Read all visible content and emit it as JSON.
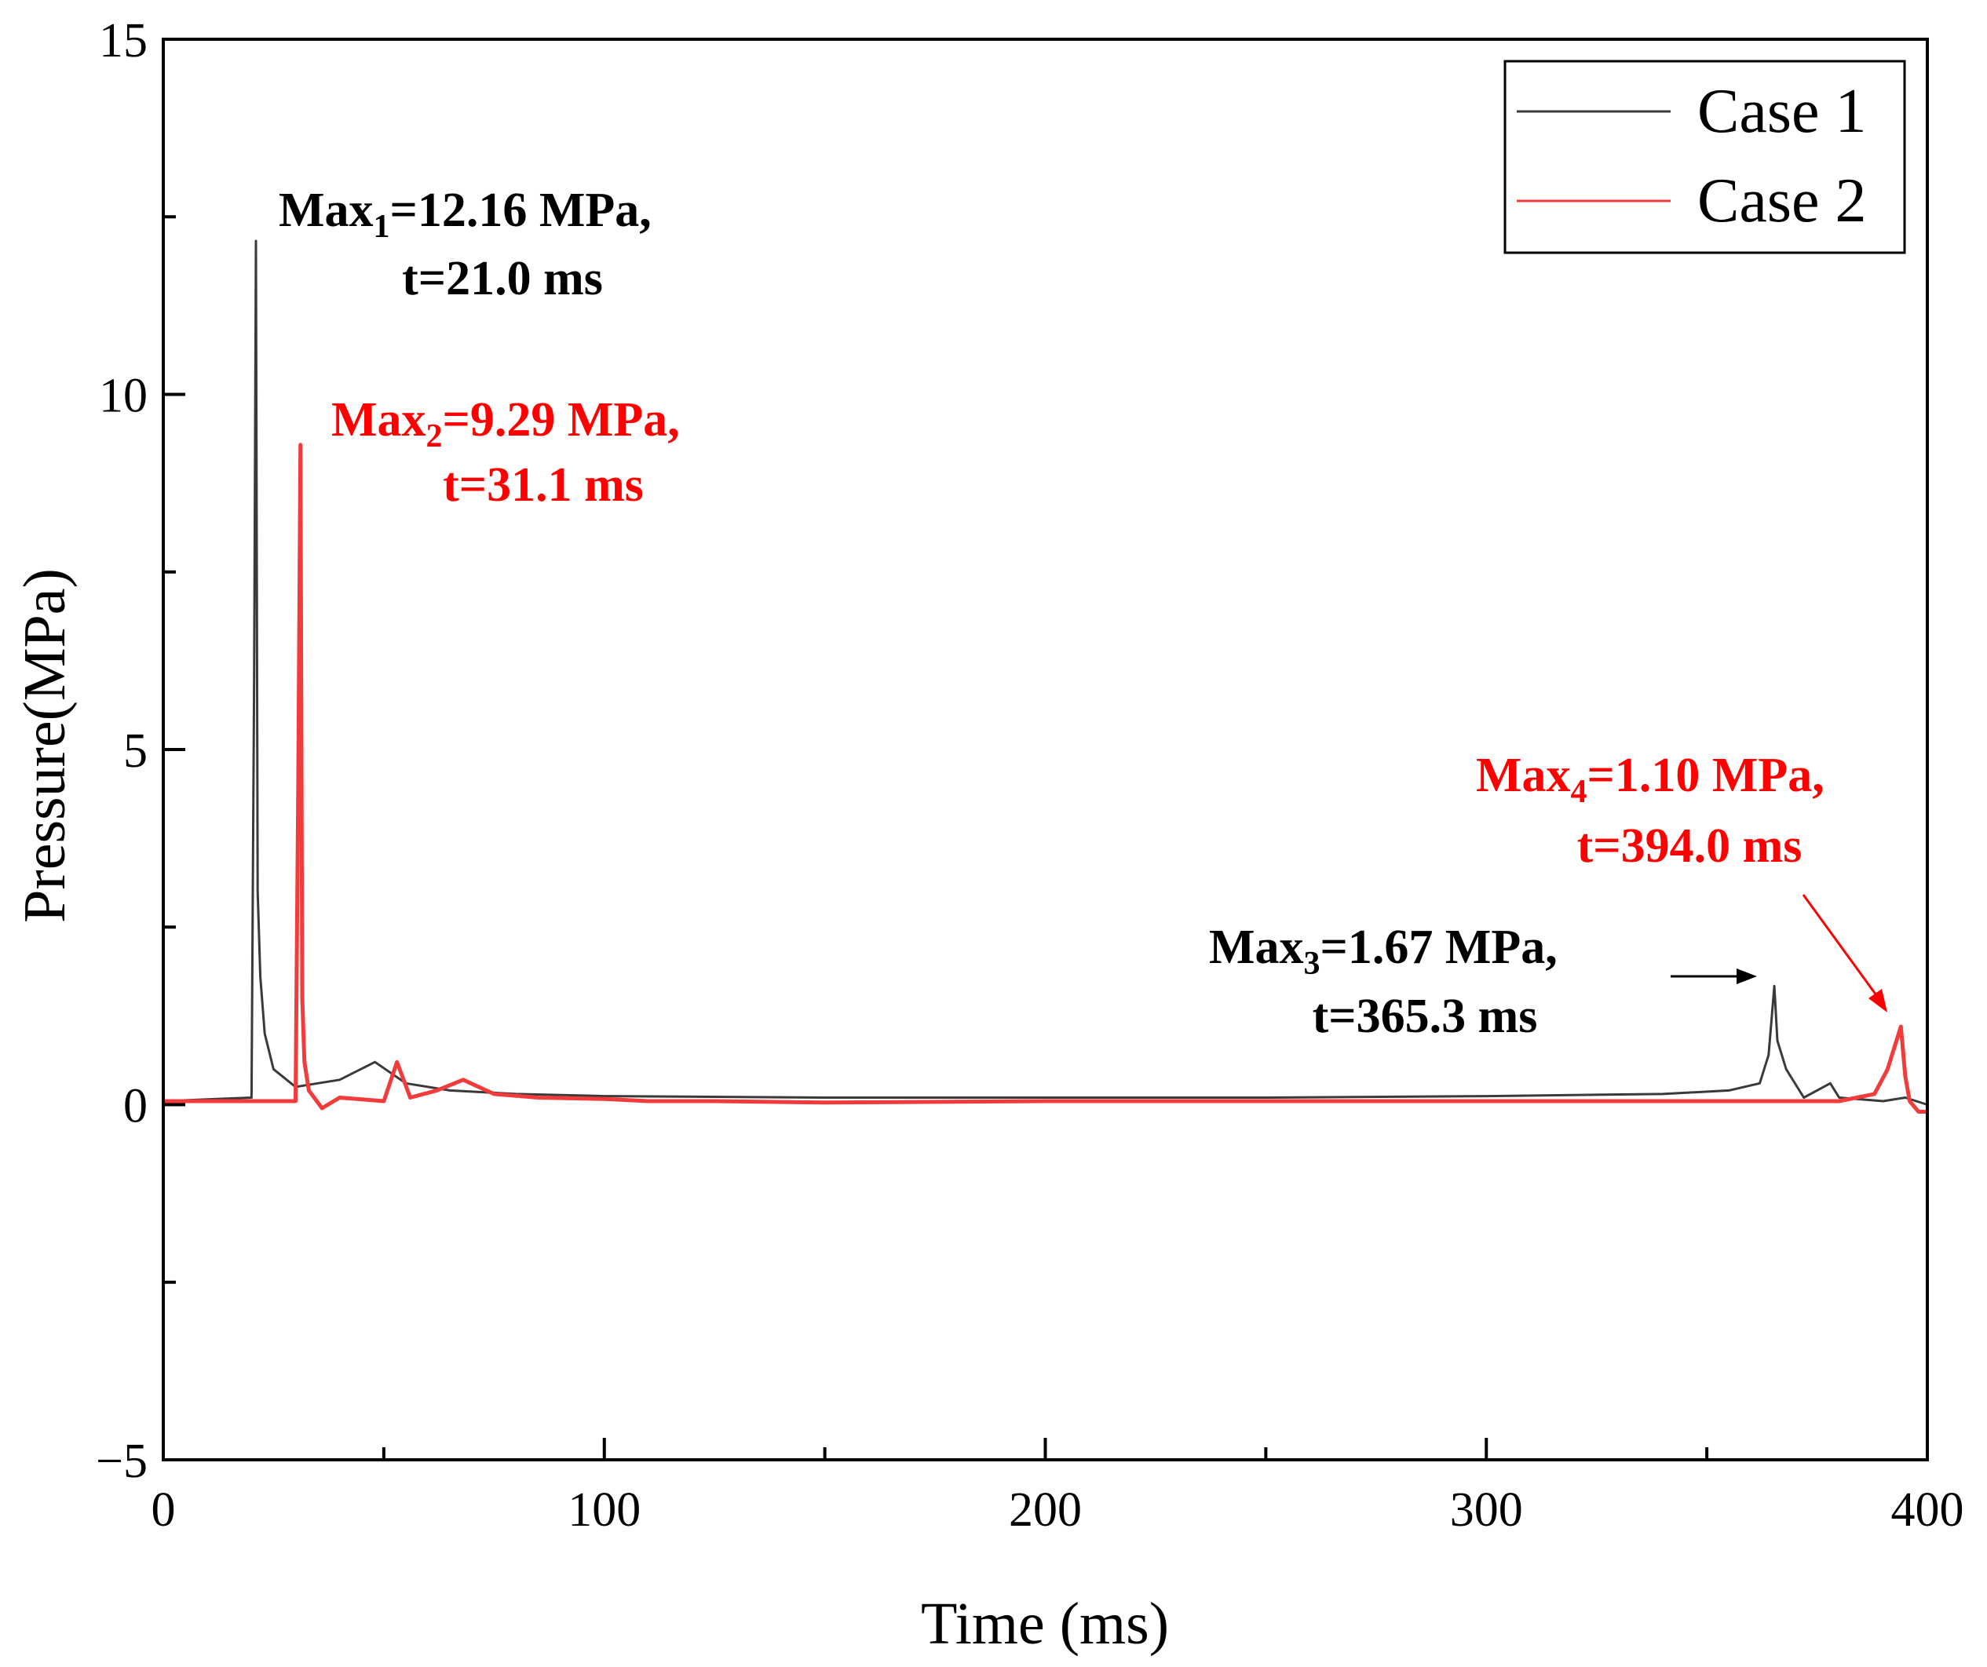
{
  "chart_data": {
    "type": "line",
    "title": "",
    "xlabel": "Time (ms)",
    "ylabel": "Pressure(MPa)",
    "xlim": [
      0,
      400
    ],
    "ylim": [
      -5,
      15
    ],
    "xticks": [
      "0",
      "100",
      "200",
      "300",
      "400"
    ],
    "yticks": [
      "−5",
      "0",
      "5",
      "10",
      "15"
    ],
    "grid": false,
    "legend_position": "top-right",
    "series": [
      {
        "name": "Case 1",
        "color": "#3a3a3a",
        "x": [
          0,
          20,
          20.6,
          21.0,
          21.4,
          22,
          23,
          25,
          30,
          35,
          40,
          48,
          55,
          65,
          80,
          100,
          150,
          200,
          250,
          300,
          340,
          355,
          362,
          364,
          365.3,
          366,
          368,
          372,
          378,
          380,
          390,
          395,
          400
        ],
        "values": [
          0.05,
          0.1,
          6.0,
          12.16,
          3.0,
          1.8,
          1.0,
          0.5,
          0.25,
          0.3,
          0.35,
          0.6,
          0.3,
          0.2,
          0.15,
          0.12,
          0.1,
          0.1,
          0.1,
          0.12,
          0.15,
          0.2,
          0.3,
          0.7,
          1.67,
          0.9,
          0.5,
          0.1,
          0.3,
          0.1,
          0.05,
          0.1,
          0.0
        ]
      },
      {
        "name": "Case 2",
        "color": "#f23b3b",
        "x": [
          0,
          30,
          30.6,
          31.1,
          31.5,
          32,
          33,
          36,
          40,
          50,
          53,
          56,
          62,
          68,
          75,
          85,
          100,
          110,
          125,
          150,
          200,
          250,
          300,
          350,
          380,
          388,
          391,
          394.0,
          395,
          396,
          398,
          400
        ],
        "values": [
          0.05,
          0.05,
          4.5,
          9.29,
          1.5,
          0.6,
          0.2,
          -0.05,
          0.1,
          0.05,
          0.6,
          0.1,
          0.2,
          0.35,
          0.15,
          0.1,
          0.08,
          0.05,
          0.05,
          0.03,
          0.05,
          0.05,
          0.05,
          0.05,
          0.05,
          0.15,
          0.5,
          1.1,
          0.4,
          0.05,
          -0.1,
          -0.1
        ]
      }
    ],
    "annotations": [
      {
        "name": "max1",
        "base": "Max",
        "sub": "1",
        "rest": "=12.16 MPa,",
        "line2": "t=21.0 ms",
        "color": "#000000"
      },
      {
        "name": "max2",
        "base": "Max",
        "sub": "2",
        "rest": "=9.29 MPa,",
        "line2": "t=31.1 ms",
        "color": "#ff0000"
      },
      {
        "name": "max3",
        "base": "Max",
        "sub": "3",
        "rest": "=1.67 MPa,",
        "line2": "t=365.3 ms",
        "color": "#000000"
      },
      {
        "name": "max4",
        "base": "Max",
        "sub": "4",
        "rest": "=1.10 MPa,",
        "line2": "t=394.0 ms",
        "color": "#ff0000"
      }
    ]
  }
}
